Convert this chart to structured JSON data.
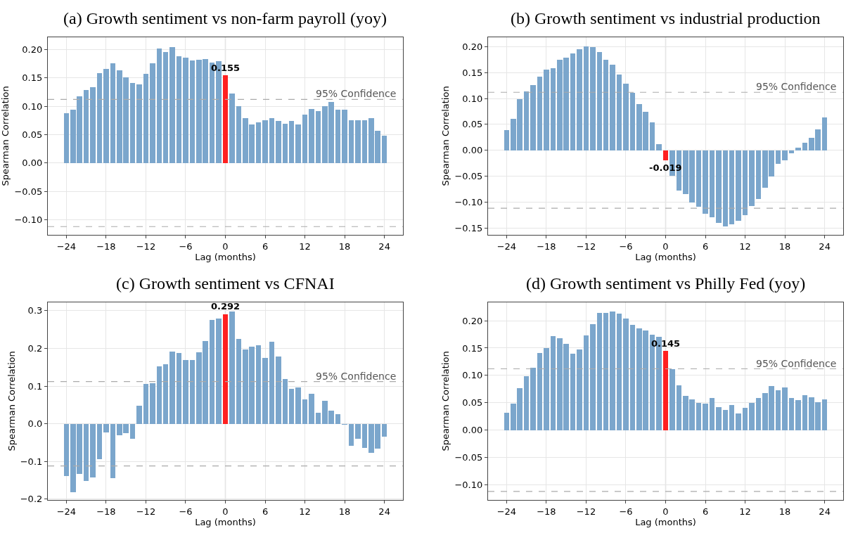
{
  "chart_data": [
    {
      "type": "bar",
      "title": "(a) Growth sentiment vs non-farm payroll (yoy)",
      "xlabel": "Lag (months)",
      "ylabel": "Spearman Correlation",
      "x": [
        -24,
        -23,
        -22,
        -21,
        -20,
        -19,
        -18,
        -17,
        -16,
        -15,
        -14,
        -13,
        -12,
        -11,
        -10,
        -9,
        -8,
        -7,
        -6,
        -5,
        -4,
        -3,
        -2,
        -1,
        0,
        1,
        2,
        3,
        4,
        5,
        6,
        7,
        8,
        9,
        10,
        11,
        12,
        13,
        14,
        15,
        16,
        17,
        18,
        19,
        20,
        21,
        22,
        23,
        24
      ],
      "values": [
        0.088,
        0.095,
        0.118,
        0.129,
        0.134,
        0.159,
        0.166,
        0.176,
        0.164,
        0.151,
        0.142,
        0.139,
        0.157,
        0.176,
        0.202,
        0.196,
        0.205,
        0.189,
        0.186,
        0.181,
        0.182,
        0.183,
        0.178,
        0.18,
        0.155,
        0.123,
        0.1,
        0.08,
        0.068,
        0.072,
        0.076,
        0.079,
        0.074,
        0.07,
        0.074,
        0.069,
        0.086,
        0.096,
        0.092,
        0.101,
        0.108,
        0.095,
        0.095,
        0.076,
        0.076,
        0.076,
        0.08,
        0.057,
        0.049
      ],
      "colors": [
        "#7ba6cc",
        "#7ba6cc",
        "#7ba6cc",
        "#7ba6cc",
        "#7ba6cc",
        "#7ba6cc",
        "#7ba6cc",
        "#7ba6cc",
        "#7ba6cc",
        "#7ba6cc",
        "#7ba6cc",
        "#7ba6cc",
        "#7ba6cc",
        "#7ba6cc",
        "#7ba6cc",
        "#7ba6cc",
        "#7ba6cc",
        "#7ba6cc",
        "#7ba6cc",
        "#7ba6cc",
        "#7ba6cc",
        "#7ba6cc",
        "#7ba6cc",
        "#7ba6cc",
        "#ff2020",
        "#7ba6cc",
        "#7ba6cc",
        "#7ba6cc",
        "#7ba6cc",
        "#7ba6cc",
        "#7ba6cc",
        "#7ba6cc",
        "#7ba6cc",
        "#7ba6cc",
        "#7ba6cc",
        "#7ba6cc",
        "#7ba6cc",
        "#7ba6cc",
        "#7ba6cc",
        "#7ba6cc",
        "#7ba6cc",
        "#7ba6cc",
        "#7ba6cc",
        "#7ba6cc",
        "#7ba6cc",
        "#7ba6cc",
        "#7ba6cc",
        "#7ba6cc",
        "#7ba6cc"
      ],
      "value_labels": [
        null,
        null,
        null,
        null,
        null,
        null,
        null,
        null,
        null,
        null,
        null,
        null,
        null,
        null,
        null,
        null,
        null,
        null,
        null,
        null,
        null,
        null,
        null,
        null,
        "0.155",
        null,
        null,
        null,
        null,
        null,
        null,
        null,
        null,
        null,
        null,
        null,
        null,
        null,
        null,
        null,
        null,
        null,
        null,
        null,
        null,
        null,
        null,
        null,
        null
      ],
      "xlim": [
        -26.8,
        26.8
      ],
      "xticks": [
        {
          "value": -24,
          "label": "−24"
        },
        {
          "value": -18,
          "label": "−18"
        },
        {
          "value": -12,
          "label": "−12"
        },
        {
          "value": -6,
          "label": "−6"
        },
        0,
        6,
        12,
        18,
        24
      ],
      "ylim": [
        -0.127,
        0.222
      ],
      "yticks": [
        {
          "value": -0.1,
          "label": "−0.10"
        },
        {
          "value": -0.05,
          "label": "−0.05"
        },
        {
          "value": 0,
          "label": "0.00"
        },
        0.05,
        {
          "value": 0.1,
          "label": "0.10"
        },
        0.15,
        {
          "value": 0.2,
          "label": "0.20"
        }
      ],
      "ref_lines": [
        {
          "axis": "y",
          "value": 0.112,
          "label": "95% Confidence",
          "color": "#aaaaaa",
          "line_style": "dashed"
        },
        {
          "axis": "y",
          "value": -0.112,
          "color": "#aaaaaa",
          "line_style": "dashed"
        },
        {
          "axis": "x",
          "value": 0,
          "color": "#c0c0c0",
          "line_style": "solid"
        }
      ],
      "grid": true
    },
    {
      "type": "bar",
      "title": "(b) Growth sentiment vs industrial production",
      "xlabel": "Lag (months)",
      "ylabel": "Spearman Correlation",
      "x": [
        -24,
        -23,
        -22,
        -21,
        -20,
        -19,
        -18,
        -17,
        -16,
        -15,
        -14,
        -13,
        -12,
        -11,
        -10,
        -9,
        -8,
        -7,
        -6,
        -5,
        -4,
        -3,
        -2,
        -1,
        0,
        1,
        2,
        3,
        4,
        5,
        6,
        7,
        8,
        9,
        10,
        11,
        12,
        13,
        14,
        15,
        16,
        17,
        18,
        19,
        20,
        21,
        22,
        23,
        24
      ],
      "values": [
        0.039,
        0.061,
        0.099,
        0.114,
        0.127,
        0.143,
        0.157,
        0.159,
        0.176,
        0.179,
        0.188,
        0.196,
        0.201,
        0.2,
        0.19,
        0.176,
        0.166,
        0.147,
        0.129,
        0.111,
        0.09,
        0.075,
        0.054,
        0.012,
        -0.019,
        -0.049,
        -0.077,
        -0.084,
        -0.1,
        -0.109,
        -0.122,
        -0.129,
        -0.14,
        -0.147,
        -0.143,
        -0.136,
        -0.125,
        -0.107,
        -0.093,
        -0.072,
        -0.05,
        -0.025,
        -0.019,
        -0.005,
        0.006,
        0.015,
        0.024,
        0.041,
        0.064
      ],
      "colors": [
        "#7ba6cc",
        "#7ba6cc",
        "#7ba6cc",
        "#7ba6cc",
        "#7ba6cc",
        "#7ba6cc",
        "#7ba6cc",
        "#7ba6cc",
        "#7ba6cc",
        "#7ba6cc",
        "#7ba6cc",
        "#7ba6cc",
        "#7ba6cc",
        "#7ba6cc",
        "#7ba6cc",
        "#7ba6cc",
        "#7ba6cc",
        "#7ba6cc",
        "#7ba6cc",
        "#7ba6cc",
        "#7ba6cc",
        "#7ba6cc",
        "#7ba6cc",
        "#7ba6cc",
        "#ff2020",
        "#7ba6cc",
        "#7ba6cc",
        "#7ba6cc",
        "#7ba6cc",
        "#7ba6cc",
        "#7ba6cc",
        "#7ba6cc",
        "#7ba6cc",
        "#7ba6cc",
        "#7ba6cc",
        "#7ba6cc",
        "#7ba6cc",
        "#7ba6cc",
        "#7ba6cc",
        "#7ba6cc",
        "#7ba6cc",
        "#7ba6cc",
        "#7ba6cc",
        "#7ba6cc",
        "#7ba6cc",
        "#7ba6cc",
        "#7ba6cc",
        "#7ba6cc",
        "#7ba6cc"
      ],
      "value_labels": [
        null,
        null,
        null,
        null,
        null,
        null,
        null,
        null,
        null,
        null,
        null,
        null,
        null,
        null,
        null,
        null,
        null,
        null,
        null,
        null,
        null,
        null,
        null,
        null,
        "-0.019",
        null,
        null,
        null,
        null,
        null,
        null,
        null,
        null,
        null,
        null,
        null,
        null,
        null,
        null,
        null,
        null,
        null,
        null,
        null,
        null,
        null,
        null,
        null,
        null
      ],
      "xlim": [
        -26.8,
        26.8
      ],
      "xticks": [
        {
          "value": -24,
          "label": "−24"
        },
        {
          "value": -18,
          "label": "−18"
        },
        {
          "value": -12,
          "label": "−12"
        },
        {
          "value": -6,
          "label": "−6"
        },
        0,
        6,
        12,
        18,
        24
      ],
      "ylim": [
        -0.164,
        0.219
      ],
      "yticks": [
        {
          "value": -0.15,
          "label": "−0.15"
        },
        {
          "value": -0.1,
          "label": "−0.10"
        },
        {
          "value": -0.05,
          "label": "−0.05"
        },
        {
          "value": 0,
          "label": "0.00"
        },
        0.05,
        {
          "value": 0.1,
          "label": "0.10"
        },
        0.15,
        {
          "value": 0.2,
          "label": "0.20"
        }
      ],
      "ref_lines": [
        {
          "axis": "y",
          "value": 0.112,
          "label": "95% Confidence",
          "color": "#aaaaaa",
          "line_style": "dashed"
        },
        {
          "axis": "y",
          "value": -0.112,
          "color": "#aaaaaa",
          "line_style": "dashed"
        },
        {
          "axis": "x",
          "value": 0,
          "color": "#c0c0c0",
          "line_style": "solid"
        }
      ],
      "grid": true
    },
    {
      "type": "bar",
      "title": "(c) Growth sentiment vs CFNAI",
      "xlabel": "Lag (months)",
      "ylabel": "Spearman Correlation",
      "x": [
        -24,
        -23,
        -22,
        -21,
        -20,
        -19,
        -18,
        -17,
        -16,
        -15,
        -14,
        -13,
        -12,
        -11,
        -10,
        -9,
        -8,
        -7,
        -6,
        -5,
        -4,
        -3,
        -2,
        -1,
        0,
        1,
        2,
        3,
        4,
        5,
        6,
        7,
        8,
        9,
        10,
        11,
        12,
        13,
        14,
        15,
        16,
        17,
        18,
        19,
        20,
        21,
        22,
        23,
        24
      ],
      "values": [
        -0.139,
        -0.181,
        -0.133,
        -0.152,
        -0.141,
        -0.093,
        -0.022,
        -0.144,
        -0.03,
        -0.024,
        -0.039,
        0.048,
        0.106,
        0.109,
        0.154,
        0.159,
        0.193,
        0.189,
        0.17,
        0.17,
        0.191,
        0.22,
        0.276,
        0.28,
        0.292,
        0.298,
        0.226,
        0.198,
        0.206,
        0.209,
        0.176,
        0.219,
        0.18,
        0.119,
        0.094,
        0.098,
        0.065,
        0.081,
        0.03,
        0.061,
        0.035,
        0.026,
        -0.001,
        -0.057,
        -0.039,
        -0.063,
        -0.076,
        -0.065,
        -0.033
      ],
      "colors": [
        "#7ba6cc",
        "#7ba6cc",
        "#7ba6cc",
        "#7ba6cc",
        "#7ba6cc",
        "#7ba6cc",
        "#7ba6cc",
        "#7ba6cc",
        "#7ba6cc",
        "#7ba6cc",
        "#7ba6cc",
        "#7ba6cc",
        "#7ba6cc",
        "#7ba6cc",
        "#7ba6cc",
        "#7ba6cc",
        "#7ba6cc",
        "#7ba6cc",
        "#7ba6cc",
        "#7ba6cc",
        "#7ba6cc",
        "#7ba6cc",
        "#7ba6cc",
        "#7ba6cc",
        "#ff2020",
        "#7ba6cc",
        "#7ba6cc",
        "#7ba6cc",
        "#7ba6cc",
        "#7ba6cc",
        "#7ba6cc",
        "#7ba6cc",
        "#7ba6cc",
        "#7ba6cc",
        "#7ba6cc",
        "#7ba6cc",
        "#7ba6cc",
        "#7ba6cc",
        "#7ba6cc",
        "#7ba6cc",
        "#7ba6cc",
        "#7ba6cc",
        "#7ba6cc",
        "#7ba6cc",
        "#7ba6cc",
        "#7ba6cc",
        "#7ba6cc",
        "#7ba6cc",
        "#7ba6cc"
      ],
      "value_labels": [
        null,
        null,
        null,
        null,
        null,
        null,
        null,
        null,
        null,
        null,
        null,
        null,
        null,
        null,
        null,
        null,
        null,
        null,
        null,
        null,
        null,
        null,
        null,
        null,
        "0.292",
        null,
        null,
        null,
        null,
        null,
        null,
        null,
        null,
        null,
        null,
        null,
        null,
        null,
        null,
        null,
        null,
        null,
        null,
        null,
        null,
        null,
        null,
        null,
        null
      ],
      "xlim": [
        -26.8,
        26.8
      ],
      "xticks": [
        {
          "value": -24,
          "label": "−24"
        },
        {
          "value": -18,
          "label": "−18"
        },
        {
          "value": -12,
          "label": "−12"
        },
        {
          "value": -6,
          "label": "−6"
        },
        0,
        6,
        12,
        18,
        24
      ],
      "ylim": [
        -0.203,
        0.323
      ],
      "yticks": [
        {
          "value": -0.2,
          "label": "−0.2"
        },
        {
          "value": -0.1,
          "label": "−0.1"
        },
        {
          "value": 0,
          "label": "0.0"
        },
        0.1,
        0.2,
        0.3
      ],
      "ref_lines": [
        {
          "axis": "y",
          "value": 0.112,
          "label": "95% Confidence",
          "color": "#aaaaaa",
          "line_style": "dashed"
        },
        {
          "axis": "y",
          "value": -0.112,
          "color": "#aaaaaa",
          "line_style": "dashed"
        },
        {
          "axis": "x",
          "value": 0,
          "color": "#c0c0c0",
          "line_style": "solid"
        }
      ],
      "grid": true
    },
    {
      "type": "bar",
      "title": "(d) Growth sentiment vs Philly Fed (yoy)",
      "xlabel": "Lag (months)",
      "ylabel": "Spearman Correlation",
      "x": [
        -24,
        -23,
        -22,
        -21,
        -20,
        -19,
        -18,
        -17,
        -16,
        -15,
        -14,
        -13,
        -12,
        -11,
        -10,
        -9,
        -8,
        -7,
        -6,
        -5,
        -4,
        -3,
        -2,
        -1,
        0,
        1,
        2,
        3,
        4,
        5,
        6,
        7,
        8,
        9,
        10,
        11,
        12,
        13,
        14,
        15,
        16,
        17,
        18,
        19,
        20,
        21,
        22,
        23,
        24
      ],
      "values": [
        0.032,
        0.049,
        0.077,
        0.099,
        0.115,
        0.142,
        0.15,
        0.172,
        0.169,
        0.158,
        0.14,
        0.148,
        0.174,
        0.194,
        0.215,
        0.215,
        0.217,
        0.213,
        0.205,
        0.193,
        0.186,
        0.183,
        0.175,
        0.171,
        0.145,
        0.112,
        0.082,
        0.063,
        0.057,
        0.05,
        0.049,
        0.059,
        0.043,
        0.038,
        0.046,
        0.031,
        0.041,
        0.05,
        0.059,
        0.068,
        0.081,
        0.073,
        0.078,
        0.059,
        0.055,
        0.065,
        0.06,
        0.052,
        0.057
      ],
      "colors": [
        "#7ba6cc",
        "#7ba6cc",
        "#7ba6cc",
        "#7ba6cc",
        "#7ba6cc",
        "#7ba6cc",
        "#7ba6cc",
        "#7ba6cc",
        "#7ba6cc",
        "#7ba6cc",
        "#7ba6cc",
        "#7ba6cc",
        "#7ba6cc",
        "#7ba6cc",
        "#7ba6cc",
        "#7ba6cc",
        "#7ba6cc",
        "#7ba6cc",
        "#7ba6cc",
        "#7ba6cc",
        "#7ba6cc",
        "#7ba6cc",
        "#7ba6cc",
        "#7ba6cc",
        "#ff2020",
        "#7ba6cc",
        "#7ba6cc",
        "#7ba6cc",
        "#7ba6cc",
        "#7ba6cc",
        "#7ba6cc",
        "#7ba6cc",
        "#7ba6cc",
        "#7ba6cc",
        "#7ba6cc",
        "#7ba6cc",
        "#7ba6cc",
        "#7ba6cc",
        "#7ba6cc",
        "#7ba6cc",
        "#7ba6cc",
        "#7ba6cc",
        "#7ba6cc",
        "#7ba6cc",
        "#7ba6cc",
        "#7ba6cc",
        "#7ba6cc",
        "#7ba6cc",
        "#7ba6cc"
      ],
      "value_labels": [
        null,
        null,
        null,
        null,
        null,
        null,
        null,
        null,
        null,
        null,
        null,
        null,
        null,
        null,
        null,
        null,
        null,
        null,
        null,
        null,
        null,
        null,
        null,
        null,
        "0.145",
        null,
        null,
        null,
        null,
        null,
        null,
        null,
        null,
        null,
        null,
        null,
        null,
        null,
        null,
        null,
        null,
        null,
        null,
        null,
        null,
        null,
        null,
        null,
        null
      ],
      "xlim": [
        -26.8,
        26.8
      ],
      "xticks": [
        {
          "value": -24,
          "label": "−24"
        },
        {
          "value": -18,
          "label": "−18"
        },
        {
          "value": -12,
          "label": "−12"
        },
        {
          "value": -6,
          "label": "−6"
        },
        0,
        6,
        12,
        18,
        24
      ],
      "ylim": [
        -0.128,
        0.234
      ],
      "yticks": [
        {
          "value": -0.1,
          "label": "−0.10"
        },
        {
          "value": -0.05,
          "label": "−0.05"
        },
        {
          "value": 0,
          "label": "0.00"
        },
        0.05,
        {
          "value": 0.1,
          "label": "0.10"
        },
        0.15,
        {
          "value": 0.2,
          "label": "0.20"
        }
      ],
      "ref_lines": [
        {
          "axis": "y",
          "value": 0.112,
          "label": "95% Confidence",
          "color": "#aaaaaa",
          "line_style": "dashed"
        },
        {
          "axis": "y",
          "value": -0.112,
          "color": "#aaaaaa",
          "line_style": "dashed"
        },
        {
          "axis": "x",
          "value": 0,
          "color": "#c0c0c0",
          "line_style": "solid"
        }
      ],
      "grid": true
    }
  ]
}
